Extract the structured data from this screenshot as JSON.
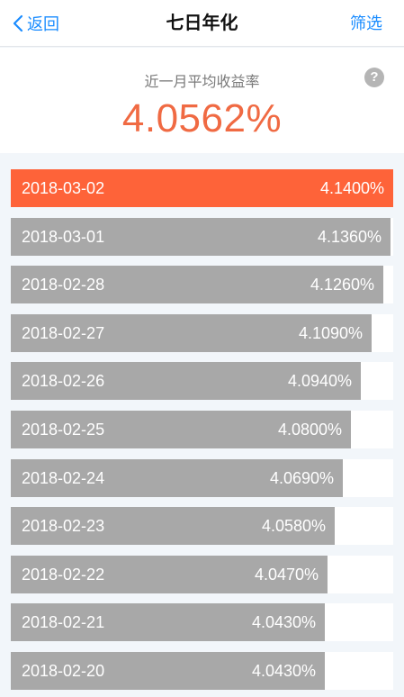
{
  "nav": {
    "back_label": "返回",
    "title": "七日年化",
    "filter_label": "筛选"
  },
  "summary": {
    "label": "近一月平均收益率",
    "help_icon": "question-circle-icon",
    "value": "4.0562%"
  },
  "colors": {
    "accent_blue": "#1a8cff",
    "highlight_orange": "#fe6339",
    "value_orange": "#f06a43",
    "bar_gray": "#a8a8a8"
  },
  "scale": {
    "min_rate": 3.6,
    "max_rate": 4.14
  },
  "rows": [
    {
      "date": "2018-03-02",
      "rate": "4.1400%",
      "value": 4.14,
      "active": true
    },
    {
      "date": "2018-03-01",
      "rate": "4.1360%",
      "value": 4.136,
      "active": false
    },
    {
      "date": "2018-02-28",
      "rate": "4.1260%",
      "value": 4.126,
      "active": false
    },
    {
      "date": "2018-02-27",
      "rate": "4.1090%",
      "value": 4.109,
      "active": false
    },
    {
      "date": "2018-02-26",
      "rate": "4.0940%",
      "value": 4.094,
      "active": false
    },
    {
      "date": "2018-02-25",
      "rate": "4.0800%",
      "value": 4.08,
      "active": false
    },
    {
      "date": "2018-02-24",
      "rate": "4.0690%",
      "value": 4.069,
      "active": false
    },
    {
      "date": "2018-02-23",
      "rate": "4.0580%",
      "value": 4.058,
      "active": false
    },
    {
      "date": "2018-02-22",
      "rate": "4.0470%",
      "value": 4.047,
      "active": false
    },
    {
      "date": "2018-02-21",
      "rate": "4.0430%",
      "value": 4.043,
      "active": false
    },
    {
      "date": "2018-02-20",
      "rate": "4.0430%",
      "value": 4.043,
      "active": false
    }
  ]
}
